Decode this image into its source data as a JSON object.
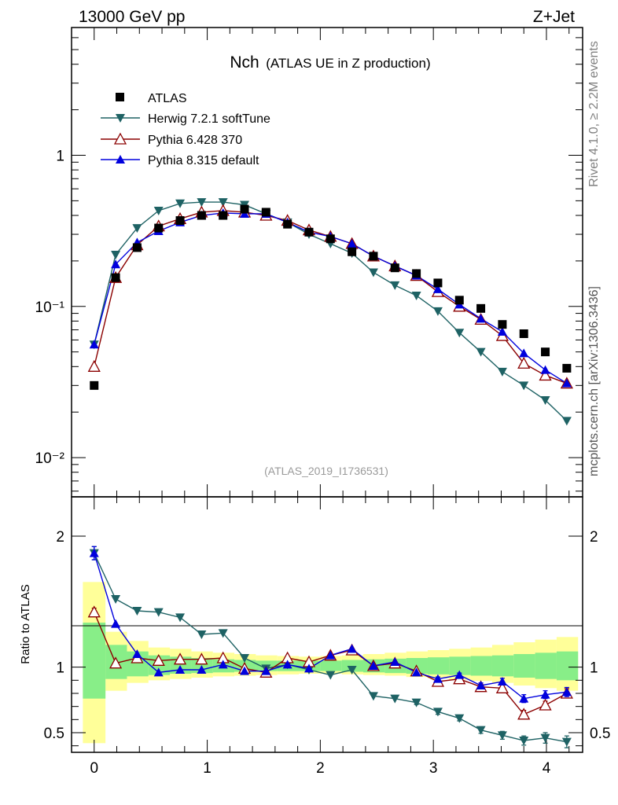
{
  "header": {
    "left": "13000 GeV pp",
    "right": "Z+Jet"
  },
  "side_labels": {
    "top": "Rivet 4.1.0, ≥ 2.2M events",
    "bottom": "mcplots.cern.ch [arXiv:1306.3436]"
  },
  "chart_data": [
    {
      "type": "scatter",
      "panel": "main",
      "title_main": "Nch",
      "title_sub": "(ATLAS UE in Z production)",
      "annotation": "(ATLAS_2019_I1736531)",
      "yscale": "log",
      "xlim": [
        -0.2,
        4.32
      ],
      "ylim": [
        0.0055,
        7
      ],
      "ytick_labels": [
        "10⁻²",
        "10⁻¹",
        "1"
      ],
      "ytick_values": [
        0.01,
        0.1,
        1
      ],
      "xtick_labels": [
        "0",
        "1",
        "2",
        "3",
        "4"
      ],
      "xtick_values": [
        0,
        1,
        2,
        3,
        4
      ],
      "x": [
        0.0,
        0.19,
        0.38,
        0.57,
        0.76,
        0.95,
        1.14,
        1.33,
        1.52,
        1.71,
        1.9,
        2.09,
        2.28,
        2.47,
        2.66,
        2.85,
        3.04,
        3.23,
        3.42,
        3.61,
        3.8,
        3.99,
        4.18
      ],
      "legend": [
        "ATLAS",
        "Herwig 7.2.1 softTune",
        "Pythia 6.428 370",
        "Pythia 8.315 default"
      ],
      "colors": {
        "ATLAS": "#000000",
        "Herwig": "#1e6264",
        "Pythia6": "#8b0000",
        "Pythia8": "#0000dd"
      },
      "series": [
        {
          "name": "ATLAS",
          "marker": "square",
          "values": [
            0.03,
            0.155,
            0.245,
            0.33,
            0.37,
            0.4,
            0.4,
            0.44,
            0.42,
            0.35,
            0.31,
            0.28,
            0.23,
            0.215,
            0.18,
            0.165,
            0.143,
            0.11,
            0.097,
            0.076,
            0.066,
            0.05,
            0.039
          ]
        },
        {
          "name": "Herwig 7.2.1 softTune",
          "marker": "triangle-down",
          "values": [
            0.056,
            0.22,
            0.33,
            0.43,
            0.48,
            0.49,
            0.49,
            0.47,
            0.41,
            0.36,
            0.3,
            0.26,
            0.225,
            0.168,
            0.138,
            0.118,
            0.093,
            0.067,
            0.05,
            0.037,
            0.03,
            0.024,
            0.0175
          ]
        },
        {
          "name": "Pythia 6.428 370",
          "marker": "triangle-up-open",
          "values": [
            0.04,
            0.155,
            0.255,
            0.34,
            0.38,
            0.42,
            0.43,
            0.42,
            0.4,
            0.37,
            0.32,
            0.29,
            0.26,
            0.215,
            0.185,
            0.16,
            0.125,
            0.1,
            0.082,
            0.064,
            0.042,
            0.035,
            0.031
          ]
        },
        {
          "name": "Pythia 8.315 default",
          "marker": "triangle-up",
          "values": [
            0.056,
            0.19,
            0.265,
            0.315,
            0.36,
            0.4,
            0.415,
            0.41,
            0.41,
            0.36,
            0.31,
            0.29,
            0.26,
            0.215,
            0.185,
            0.16,
            0.13,
            0.103,
            0.083,
            0.068,
            0.049,
            0.038,
            0.031
          ]
        }
      ]
    },
    {
      "type": "line",
      "panel": "ratio",
      "ylabel": "Ratio to ATLAS",
      "ylim": [
        0.35,
        2.3
      ],
      "ytick_labels": [
        "0.5",
        "1",
        "2"
      ],
      "ytick_values": [
        0.5,
        1,
        2
      ],
      "xtick_labels": [
        "0",
        "1",
        "2",
        "3",
        "4"
      ],
      "x": [
        0.0,
        0.19,
        0.38,
        0.57,
        0.76,
        0.95,
        1.14,
        1.33,
        1.52,
        1.71,
        1.9,
        2.09,
        2.28,
        2.47,
        2.66,
        2.85,
        3.04,
        3.23,
        3.42,
        3.61,
        3.8,
        3.99,
        4.18
      ],
      "bin_edges": [
        -0.1,
        0.1,
        0.29,
        0.48,
        0.67,
        0.86,
        1.05,
        1.24,
        1.43,
        1.62,
        1.81,
        2.0,
        2.19,
        2.38,
        2.57,
        2.76,
        2.95,
        3.14,
        3.33,
        3.52,
        3.71,
        3.9,
        4.09,
        4.28
      ],
      "band_total": [
        [
          0.42,
          1.65
        ],
        [
          0.82,
          1.27
        ],
        [
          0.88,
          1.2
        ],
        [
          0.9,
          1.15
        ],
        [
          0.91,
          1.14
        ],
        [
          0.92,
          1.12
        ],
        [
          0.93,
          1.11
        ],
        [
          0.935,
          1.1
        ],
        [
          0.94,
          1.09
        ],
        [
          0.945,
          1.085
        ],
        [
          0.95,
          1.08
        ],
        [
          0.95,
          1.085
        ],
        [
          0.945,
          1.09
        ],
        [
          0.94,
          1.1
        ],
        [
          0.935,
          1.11
        ],
        [
          0.925,
          1.12
        ],
        [
          0.915,
          1.13
        ],
        [
          0.905,
          1.14
        ],
        [
          0.895,
          1.15
        ],
        [
          0.88,
          1.17
        ],
        [
          0.86,
          1.19
        ],
        [
          0.84,
          1.21
        ],
        [
          0.82,
          1.23
        ]
      ],
      "band_stat": [
        [
          0.76,
          1.34
        ],
        [
          0.91,
          1.17
        ],
        [
          0.93,
          1.12
        ],
        [
          0.94,
          1.09
        ],
        [
          0.95,
          1.08
        ],
        [
          0.955,
          1.07
        ],
        [
          0.96,
          1.06
        ],
        [
          0.965,
          1.055
        ],
        [
          0.97,
          1.05
        ],
        [
          0.97,
          1.05
        ],
        [
          0.97,
          1.05
        ],
        [
          0.97,
          1.05
        ],
        [
          0.965,
          1.055
        ],
        [
          0.96,
          1.06
        ],
        [
          0.955,
          1.065
        ],
        [
          0.95,
          1.07
        ],
        [
          0.945,
          1.075
        ],
        [
          0.94,
          1.08
        ],
        [
          0.935,
          1.085
        ],
        [
          0.93,
          1.09
        ],
        [
          0.92,
          1.1
        ],
        [
          0.91,
          1.11
        ],
        [
          0.9,
          1.12
        ]
      ],
      "band_colors": {
        "total": "#ffff99",
        "stat": "#88ee88"
      },
      "series": [
        {
          "name": "Herwig 7.2.1 softTune",
          "values": [
            1.87,
            1.52,
            1.43,
            1.42,
            1.38,
            1.25,
            1.26,
            1.07,
            0.99,
            1.02,
            0.98,
            0.94,
            0.98,
            0.78,
            0.76,
            0.73,
            0.66,
            0.61,
            0.52,
            0.48,
            0.44,
            0.46,
            0.43
          ],
          "errors": [
            0.05,
            0.01,
            0.01,
            0.01,
            0.01,
            0.01,
            0.01,
            0.01,
            0.01,
            0.01,
            0.01,
            0.01,
            0.01,
            0.01,
            0.01,
            0.015,
            0.02,
            0.02,
            0.025,
            0.03,
            0.035,
            0.04,
            0.045
          ]
        },
        {
          "name": "Pythia 6.428 370",
          "values": [
            1.42,
            1.03,
            1.07,
            1.05,
            1.06,
            1.06,
            1.07,
            0.99,
            0.96,
            1.07,
            1.04,
            1.09,
            1.13,
            1.01,
            1.03,
            0.97,
            0.89,
            0.91,
            0.85,
            0.84,
            0.64,
            0.71,
            0.8
          ],
          "errors": [
            0.03,
            0.01,
            0.01,
            0.01,
            0.01,
            0.01,
            0.01,
            0.01,
            0.01,
            0.01,
            0.01,
            0.01,
            0.01,
            0.01,
            0.01,
            0.01,
            0.015,
            0.015,
            0.02,
            0.025,
            0.03,
            0.03,
            0.035
          ]
        },
        {
          "name": "Pythia 8.315 default",
          "values": [
            1.87,
            1.33,
            1.1,
            0.96,
            0.98,
            0.98,
            1.02,
            0.97,
            0.97,
            1.02,
            0.99,
            1.09,
            1.14,
            1.01,
            1.04,
            0.96,
            0.91,
            0.94,
            0.86,
            0.89,
            0.76,
            0.79,
            0.81
          ],
          "errors": [
            0.05,
            0.01,
            0.01,
            0.01,
            0.01,
            0.01,
            0.01,
            0.01,
            0.01,
            0.01,
            0.01,
            0.01,
            0.01,
            0.01,
            0.01,
            0.01,
            0.015,
            0.015,
            0.02,
            0.025,
            0.03,
            0.03,
            0.035
          ]
        }
      ]
    }
  ]
}
